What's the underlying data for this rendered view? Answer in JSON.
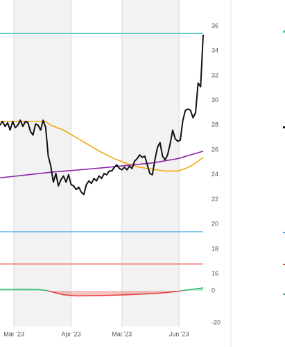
{
  "chart_data": [
    {
      "type": "line",
      "xlim": [
        0,
        80
      ],
      "ylim": [
        15.7,
        38.1
      ],
      "yticks": [
        36,
        34,
        32,
        30,
        28,
        26,
        24,
        22,
        20,
        18,
        16
      ],
      "xticks": [
        {
          "value": 5.5,
          "label": "Mär '23"
        },
        {
          "value": 28,
          "label": "Apr '23"
        },
        {
          "value": 48,
          "label": "Mai '23"
        },
        {
          "value": 70.5,
          "label": "Jun '23"
        }
      ],
      "levels": [
        {
          "value": 35.4,
          "color": "#3cc3b4"
        },
        {
          "value": 19.4,
          "color": "#3ba3e0"
        },
        {
          "value": 16.8,
          "color": "#e8403a"
        }
      ],
      "series": [
        {
          "color": "#f5a70a",
          "x": [
            0,
            5,
            10,
            15,
            18,
            20,
            25,
            30,
            35,
            40,
            45,
            50,
            55,
            60,
            65,
            70,
            73,
            76,
            80
          ],
          "values": [
            28.3,
            28.3,
            28.3,
            28.3,
            28.3,
            28.0,
            27.6,
            27.0,
            26.4,
            25.8,
            25.3,
            24.9,
            24.6,
            24.45,
            24.3,
            24.3,
            24.5,
            24.8,
            25.4
          ]
        },
        {
          "color": "#8e24aa",
          "x": [
            0,
            20,
            40,
            60,
            70,
            80
          ],
          "values": [
            23.75,
            24.2,
            24.55,
            24.95,
            25.3,
            25.9
          ]
        },
        {
          "color": "#111111",
          "x": [
            0,
            1,
            2,
            3,
            4,
            5,
            6,
            7,
            8,
            9,
            10,
            11,
            12,
            13,
            14,
            15,
            16,
            17,
            18,
            19,
            20,
            21,
            22,
            23,
            24,
            25,
            26,
            27,
            28,
            29,
            30,
            31,
            32,
            33,
            34,
            35,
            36,
            37,
            38,
            39,
            40,
            41,
            42,
            43,
            44,
            45,
            46,
            47,
            48,
            49,
            50,
            51,
            52,
            53,
            54,
            55,
            56,
            57,
            58,
            59,
            60,
            61,
            62,
            63,
            64,
            65,
            66,
            67,
            68,
            69,
            70,
            71,
            72,
            73,
            74,
            75,
            76,
            77,
            78,
            79,
            80
          ],
          "values": [
            28.0,
            28.3,
            27.9,
            28.2,
            27.6,
            28.3,
            27.8,
            28.0,
            28.4,
            27.9,
            28.3,
            28.2,
            27.5,
            27.2,
            28.1,
            28.0,
            27.6,
            28.4,
            27.8,
            25.5,
            24.7,
            23.4,
            24.1,
            23.1,
            23.6,
            23.9,
            23.4,
            24.0,
            23.2,
            23.1,
            22.8,
            23.0,
            22.6,
            22.4,
            23.2,
            23.5,
            23.3,
            23.7,
            23.5,
            23.9,
            23.7,
            24.1,
            24.0,
            24.3,
            24.3,
            24.6,
            24.8,
            24.5,
            24.4,
            24.6,
            24.4,
            24.7,
            24.5,
            25.1,
            25.3,
            25.6,
            25.4,
            25.5,
            24.8,
            24.1,
            24.0,
            25.2,
            26.2,
            26.6,
            25.5,
            25.2,
            25.6,
            26.5,
            27.6,
            26.9,
            26.7,
            26.8,
            28.4,
            29.2,
            29.3,
            29.2,
            28.6,
            29.0,
            31.4,
            31.1,
            35.3
          ]
        }
      ]
    },
    {
      "type": "area",
      "xlim": [
        0,
        80
      ],
      "ylim": [
        -25,
        5
      ],
      "yticks": [
        0,
        -20
      ],
      "up_color": "#2bb673",
      "down_color": "#e53935",
      "x": [
        0,
        5,
        10,
        15,
        18,
        20,
        25,
        30,
        40,
        50,
        60,
        65,
        70,
        75,
        80
      ],
      "values": [
        1,
        1,
        1,
        0.8,
        0.3,
        -0.5,
        -2.5,
        -3.2,
        -3.0,
        -2.5,
        -1.8,
        -1.2,
        -0.3,
        0.8,
        1.8
      ]
    }
  ]
}
